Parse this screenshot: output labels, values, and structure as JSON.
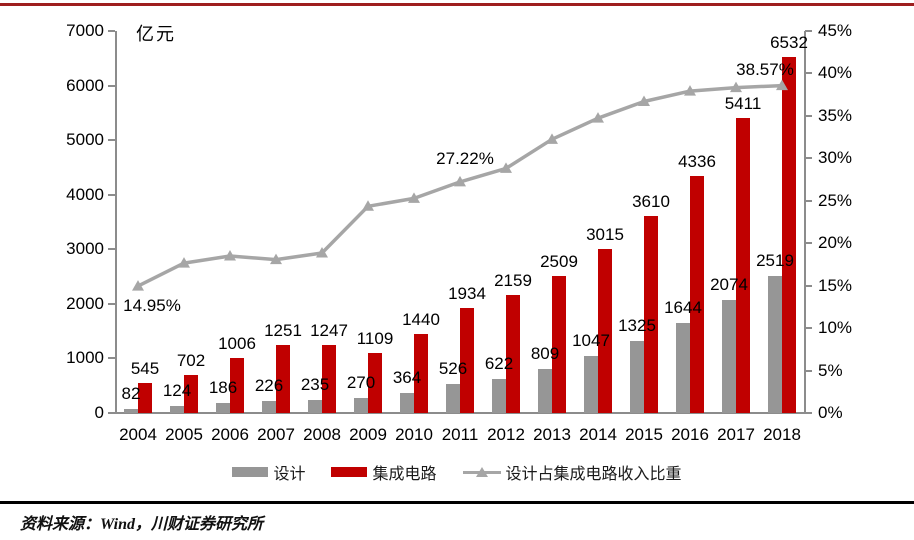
{
  "page": {
    "source": "资料来源：Wind，川财证券研究所"
  },
  "chart_data": {
    "type": "bar",
    "subtype": "combo-bar-line",
    "title": "",
    "categories": [
      "2004",
      "2005",
      "2006",
      "2007",
      "2008",
      "2009",
      "2010",
      "2011",
      "2012",
      "2013",
      "2014",
      "2015",
      "2016",
      "2017",
      "2018"
    ],
    "series": [
      {
        "key": "design",
        "name": "设计",
        "type": "bar",
        "axis": "left",
        "color": "#969696",
        "values": [
          82,
          124,
          186,
          226,
          235,
          270,
          364,
          526,
          622,
          809,
          1047,
          1325,
          1644,
          2074,
          2519
        ]
      },
      {
        "key": "ic",
        "name": "集成电路",
        "type": "bar",
        "axis": "left",
        "color": "#c00000",
        "values": [
          545,
          702,
          1006,
          1251,
          1247,
          1109,
          1440,
          1934,
          2159,
          2509,
          3015,
          3610,
          4336,
          5411,
          6532
        ]
      },
      {
        "key": "ratio",
        "name": "设计占集成电路收入比重",
        "type": "line",
        "axis": "right",
        "color": "#a6a6a6",
        "values": [
          14.95,
          17.66,
          18.49,
          18.07,
          18.85,
          24.35,
          25.28,
          27.22,
          28.81,
          32.24,
          34.73,
          36.7,
          37.92,
          38.33,
          38.57
        ]
      }
    ],
    "annotations": [
      {
        "category": "2004",
        "text": "14.95%"
      },
      {
        "category": "2011",
        "text": "27.22%"
      },
      {
        "category": "2018",
        "text": "38.57%"
      }
    ],
    "left_axis": {
      "unit": "亿元",
      "min": 0,
      "max": 7000,
      "step": 1000
    },
    "right_axis": {
      "min": 0,
      "max": 45,
      "step": 5,
      "suffix": "%"
    },
    "legend_position": "bottom",
    "grid": false
  }
}
